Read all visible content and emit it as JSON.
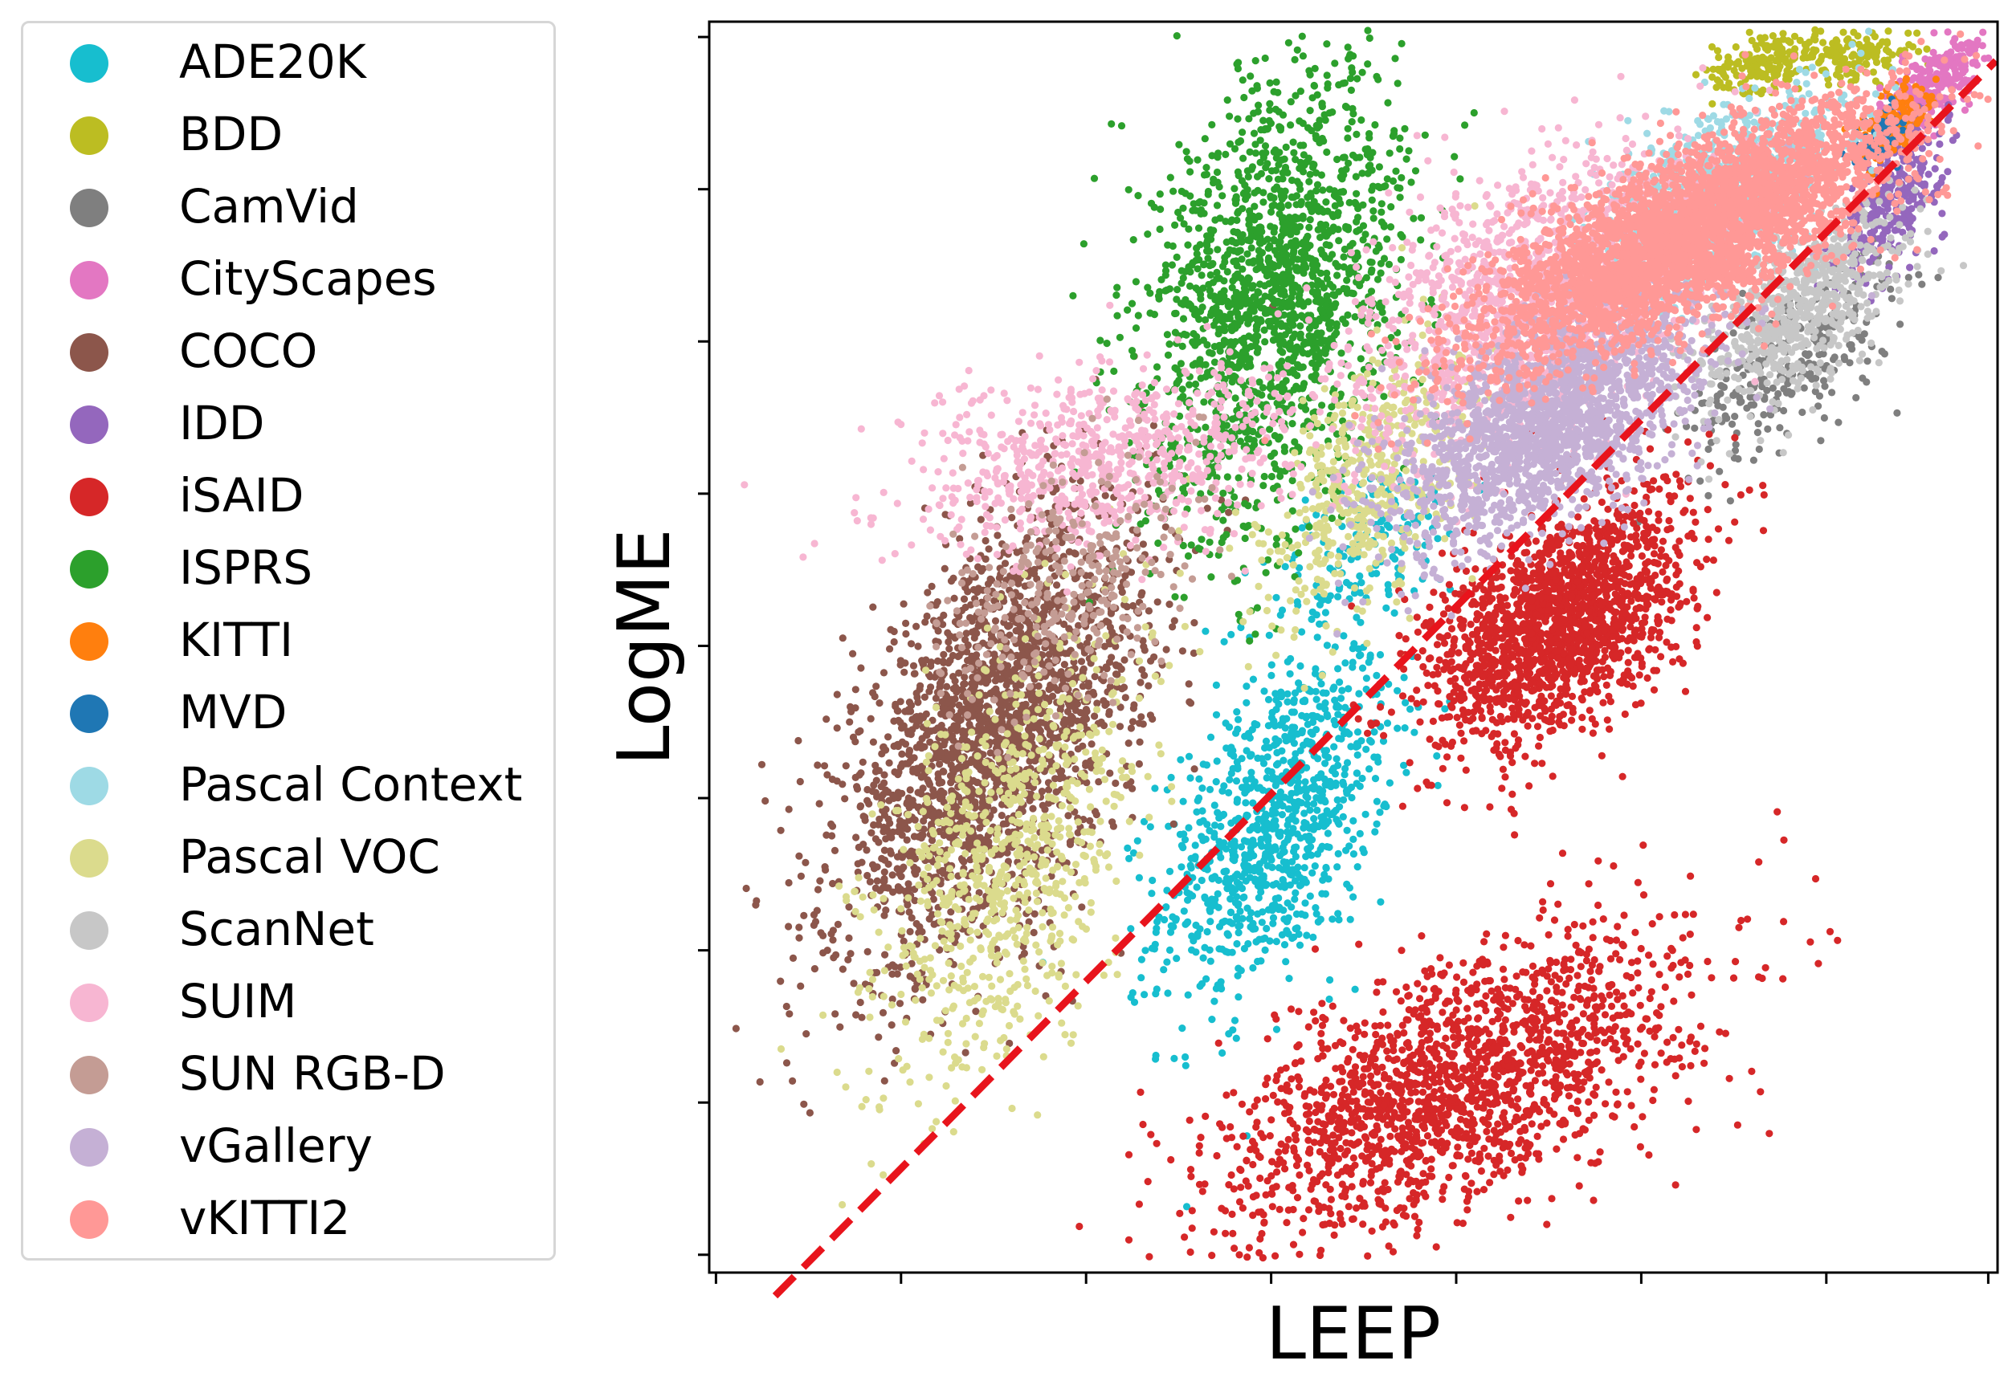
{
  "chart_data": {
    "type": "scatter",
    "title": "",
    "xlabel": "LEEP",
    "ylabel": "LogME",
    "tick_labels_visible": false,
    "xlim": [
      0,
      100
    ],
    "ylim": [
      0,
      100
    ],
    "grid": false,
    "legend_position": "left",
    "reference_line": {
      "style": "dashed",
      "color": "#e8141c",
      "x": [
        5,
        100
      ],
      "y": [
        -2,
        97
      ]
    },
    "series": [
      {
        "name": "ADE20K",
        "color": "#17becf",
        "clusters": [
          {
            "cx": 44,
            "cy": 36,
            "sx": 4.5,
            "sy": 7,
            "rho": 0.5,
            "n": 950
          },
          {
            "cx": 51,
            "cy": 58,
            "sx": 4,
            "sy": 4,
            "rho": 0.6,
            "n": 150
          }
        ]
      },
      {
        "name": "BDD",
        "color": "#bcbd22",
        "clusters": [
          {
            "cx": 82,
            "cy": 97,
            "sx": 2,
            "sy": 1.2,
            "rho": 0.3,
            "n": 160
          },
          {
            "cx": 89,
            "cy": 97.5,
            "sx": 2.5,
            "sy": 1,
            "rho": 0.2,
            "n": 150
          }
        ]
      },
      {
        "name": "CamVid",
        "color": "#7f7f7f",
        "clusters": [
          {
            "cx": 84,
            "cy": 73,
            "sx": 4,
            "sy": 4,
            "rho": 0.6,
            "n": 280
          }
        ]
      },
      {
        "name": "CityScapes",
        "color": "#e377c2",
        "clusters": [
          {
            "cx": 95,
            "cy": 95,
            "sx": 2,
            "sy": 2,
            "rho": 0.7,
            "n": 320
          }
        ]
      },
      {
        "name": "COCO",
        "color": "#8c564b",
        "clusters": [
          {
            "cx": 22,
            "cy": 43,
            "sx": 6,
            "sy": 9,
            "rho": 0.55,
            "n": 2300
          }
        ]
      },
      {
        "name": "IDD",
        "color": "#9467bd",
        "clusters": [
          {
            "cx": 92,
            "cy": 86,
            "sx": 2,
            "sy": 3,
            "rho": 0.6,
            "n": 280
          }
        ]
      },
      {
        "name": "iSAID",
        "color": "#d62728",
        "clusters": [
          {
            "cx": 66,
            "cy": 52,
            "sx": 5,
            "sy": 5,
            "rho": 0.5,
            "n": 1750
          },
          {
            "cx": 58,
            "cy": 15,
            "sx": 9,
            "sy": 6,
            "rho": 0.6,
            "n": 1750
          }
        ]
      },
      {
        "name": "ISPRS",
        "color": "#2ca02c",
        "clusters": [
          {
            "cx": 44,
            "cy": 78,
            "sx": 5,
            "sy": 9,
            "rho": 0.3,
            "n": 1700
          }
        ]
      },
      {
        "name": "KITTI",
        "color": "#ff7f0e",
        "clusters": [
          {
            "cx": 92,
            "cy": 92,
            "sx": 1.2,
            "sy": 1.5,
            "rho": 0.5,
            "n": 150
          }
        ]
      },
      {
        "name": "MVD",
        "color": "#1f77b4",
        "clusters": [
          {
            "cx": 91,
            "cy": 91,
            "sx": 1,
            "sy": 1,
            "rho": 0.5,
            "n": 60
          }
        ]
      },
      {
        "name": "Pascal Context",
        "color": "#9edae5",
        "clusters": [
          {
            "cx": 78,
            "cy": 86,
            "sx": 5,
            "sy": 4,
            "rho": 0.6,
            "n": 900
          }
        ]
      },
      {
        "name": "Pascal VOC",
        "color": "#dbdb8d",
        "clusters": [
          {
            "cx": 23,
            "cy": 33,
            "sx": 5,
            "sy": 9,
            "rho": 0.5,
            "n": 800
          },
          {
            "cx": 51,
            "cy": 63,
            "sx": 4,
            "sy": 6,
            "rho": 0.5,
            "n": 500
          }
        ]
      },
      {
        "name": "ScanNet",
        "color": "#c7c7c7",
        "clusters": [
          {
            "cx": 85,
            "cy": 77,
            "sx": 4,
            "sy": 4,
            "rho": 0.65,
            "n": 650
          }
        ]
      },
      {
        "name": "SUIM",
        "color": "#f7b6d2",
        "clusters": [
          {
            "cx": 31,
            "cy": 65,
            "sx": 8,
            "sy": 4,
            "rho": 0.4,
            "n": 750
          },
          {
            "cx": 64,
            "cy": 78,
            "sx": 7,
            "sy": 6,
            "rho": 0.5,
            "n": 1400
          }
        ]
      },
      {
        "name": "SUN RGB-D",
        "color": "#c49c94",
        "clusters": [
          {
            "cx": 28,
            "cy": 55,
            "sx": 5,
            "sy": 5,
            "rho": 0.4,
            "n": 300
          }
        ]
      },
      {
        "name": "vGallery",
        "color": "#c5b0d5",
        "clusters": [
          {
            "cx": 65,
            "cy": 68,
            "sx": 6,
            "sy": 5,
            "rho": 0.6,
            "n": 1900
          }
        ]
      },
      {
        "name": "vKITTI2",
        "color": "#ff9896",
        "clusters": [
          {
            "cx": 76,
            "cy": 83,
            "sx": 8,
            "sy": 5,
            "rho": 0.75,
            "n": 3800
          }
        ]
      }
    ]
  }
}
